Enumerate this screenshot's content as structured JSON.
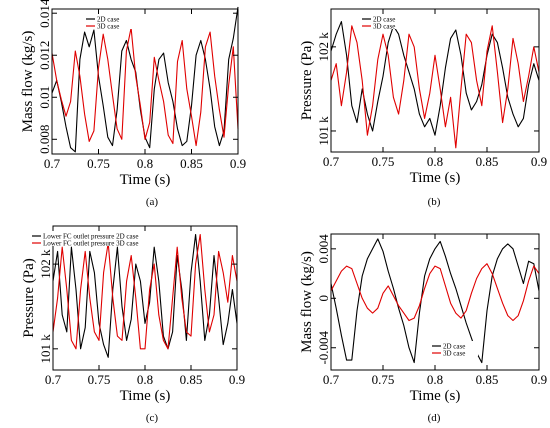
{
  "figure": {
    "panels": [
      "(a)",
      "(b)",
      "(c)",
      "(d)"
    ]
  },
  "colors": {
    "series_2d": "#000000",
    "series_3d": "#e00000"
  },
  "chart_data": [
    {
      "type": "line",
      "panel": "(a)",
      "xlabel": "Time (s)",
      "ylabel": "Mass flow (kg/s)",
      "xlim": [
        0.7,
        0.9
      ],
      "ylim": [
        0.0073,
        0.0142
      ],
      "xticks": [
        0.7,
        0.75,
        0.8,
        0.85,
        0.9
      ],
      "xtick_labels": [
        "0.7",
        "0.75",
        "0.8",
        "0.85",
        "0.9"
      ],
      "yticks": [
        0.008,
        0.01,
        0.012,
        0.014
      ],
      "ytick_labels": [
        "0.008",
        "0.01",
        "0.012",
        "0.014"
      ],
      "legend": "top-center",
      "series": [
        {
          "name": "2D case",
          "color": "#000000",
          "x": [
            0.7,
            0.705,
            0.71,
            0.715,
            0.72,
            0.725,
            0.73,
            0.735,
            0.74,
            0.745,
            0.75,
            0.755,
            0.76,
            0.765,
            0.77,
            0.775,
            0.78,
            0.785,
            0.79,
            0.795,
            0.8,
            0.805,
            0.81,
            0.815,
            0.82,
            0.825,
            0.83,
            0.835,
            0.84,
            0.845,
            0.85,
            0.855,
            0.86,
            0.865,
            0.87,
            0.875,
            0.88,
            0.885,
            0.89,
            0.895,
            0.9
          ],
          "y": [
            0.0102,
            0.0108,
            0.0098,
            0.0086,
            0.0076,
            0.0074,
            0.0118,
            0.0131,
            0.0124,
            0.0132,
            0.011,
            0.0096,
            0.0081,
            0.0077,
            0.0094,
            0.0122,
            0.0127,
            0.0118,
            0.0112,
            0.0094,
            0.0081,
            0.0076,
            0.0104,
            0.0118,
            0.0121,
            0.0107,
            0.0098,
            0.0085,
            0.0077,
            0.0079,
            0.0096,
            0.012,
            0.0127,
            0.0118,
            0.0104,
            0.0086,
            0.0077,
            0.0084,
            0.0118,
            0.0128,
            0.0143
          ]
        },
        {
          "name": "3D case",
          "color": "#e00000",
          "x": [
            0.7,
            0.705,
            0.71,
            0.715,
            0.72,
            0.725,
            0.73,
            0.735,
            0.74,
            0.745,
            0.75,
            0.755,
            0.76,
            0.765,
            0.77,
            0.775,
            0.78,
            0.785,
            0.79,
            0.795,
            0.8,
            0.805,
            0.81,
            0.815,
            0.82,
            0.825,
            0.83,
            0.835,
            0.84,
            0.845,
            0.85,
            0.855,
            0.86,
            0.865,
            0.87,
            0.875,
            0.88,
            0.885,
            0.89,
            0.895,
            0.9
          ],
          "y": [
            0.0121,
            0.0108,
            0.0099,
            0.0091,
            0.0098,
            0.0122,
            0.011,
            0.0092,
            0.0079,
            0.0084,
            0.0114,
            0.013,
            0.0118,
            0.0101,
            0.0085,
            0.008,
            0.0122,
            0.0133,
            0.011,
            0.0096,
            0.008,
            0.0088,
            0.0119,
            0.0108,
            0.0098,
            0.0082,
            0.0078,
            0.0117,
            0.0127,
            0.0104,
            0.0091,
            0.0077,
            0.0093,
            0.0124,
            0.0131,
            0.011,
            0.0094,
            0.0081,
            0.0106,
            0.0124,
            0.0085
          ]
        }
      ]
    },
    {
      "type": "line",
      "panel": "(b)",
      "xlabel": "Time (s)",
      "ylabel": "Pressure (Pa)",
      "xlim": [
        0.7,
        0.9
      ],
      "ylim": [
        100750,
        102450
      ],
      "xticks": [
        0.7,
        0.75,
        0.8,
        0.85,
        0.9
      ],
      "xtick_labels": [
        "0.7",
        "0.75",
        "0.8",
        "0.85",
        "0.9"
      ],
      "yticks": [
        101000,
        102000
      ],
      "ytick_labels": [
        "101 k",
        "102 k"
      ],
      "legend": "top-center",
      "series": [
        {
          "name": "2D case",
          "color": "#000000",
          "x": [
            0.7,
            0.705,
            0.71,
            0.715,
            0.72,
            0.725,
            0.73,
            0.735,
            0.74,
            0.745,
            0.75,
            0.755,
            0.76,
            0.765,
            0.77,
            0.775,
            0.78,
            0.785,
            0.79,
            0.795,
            0.8,
            0.805,
            0.81,
            0.815,
            0.82,
            0.825,
            0.83,
            0.835,
            0.84,
            0.845,
            0.85,
            0.855,
            0.86,
            0.865,
            0.87,
            0.875,
            0.88,
            0.885,
            0.89,
            0.895,
            0.9
          ],
          "y": [
            101950,
            102150,
            102300,
            101900,
            101300,
            101100,
            101500,
            101200,
            101000,
            101350,
            101650,
            102050,
            102250,
            102150,
            101900,
            101700,
            101500,
            101200,
            101050,
            101150,
            100950,
            101300,
            101750,
            102100,
            102200,
            101900,
            101450,
            101250,
            101350,
            101550,
            101900,
            102150,
            102050,
            101750,
            101400,
            101200,
            101050,
            101150,
            101550,
            101800,
            101600
          ]
        },
        {
          "name": "3D case",
          "color": "#e00000",
          "x": [
            0.7,
            0.705,
            0.71,
            0.715,
            0.72,
            0.725,
            0.73,
            0.735,
            0.74,
            0.745,
            0.75,
            0.755,
            0.76,
            0.765,
            0.77,
            0.775,
            0.78,
            0.785,
            0.79,
            0.795,
            0.8,
            0.805,
            0.81,
            0.815,
            0.82,
            0.825,
            0.83,
            0.835,
            0.84,
            0.845,
            0.85,
            0.855,
            0.86,
            0.865,
            0.87,
            0.875,
            0.88,
            0.885,
            0.89,
            0.895,
            0.9
          ],
          "y": [
            101600,
            101800,
            101300,
            101700,
            102250,
            102050,
            101600,
            100950,
            101300,
            101850,
            102150,
            101900,
            101400,
            101200,
            101600,
            102150,
            102000,
            101500,
            101150,
            101450,
            101900,
            101500,
            101050,
            101400,
            100800,
            101500,
            102150,
            102050,
            101600,
            101300,
            101950,
            102250,
            101700,
            101100,
            101500,
            102100,
            101800,
            101350,
            101650,
            102000,
            101700
          ]
        }
      ]
    },
    {
      "type": "line",
      "panel": "(c)",
      "xlabel": "Time (s)",
      "ylabel": "Pressure (Pa)",
      "xlim": [
        0.7,
        0.9
      ],
      "ylim": [
        100750,
        102450
      ],
      "xticks": [
        0.7,
        0.75,
        0.8,
        0.85,
        0.9
      ],
      "xtick_labels": [
        "0.7",
        "0.75",
        "0.8",
        "0.85",
        "0.9"
      ],
      "yticks": [
        101000,
        102000
      ],
      "ytick_labels": [
        "101 k",
        "102 k"
      ],
      "legend": "top-left",
      "series": [
        {
          "name": "Lower FC outlet pressure 2D case",
          "color": "#000000",
          "x": [
            0.7,
            0.705,
            0.71,
            0.715,
            0.72,
            0.725,
            0.73,
            0.735,
            0.74,
            0.745,
            0.75,
            0.755,
            0.76,
            0.765,
            0.77,
            0.775,
            0.78,
            0.785,
            0.79,
            0.795,
            0.8,
            0.805,
            0.81,
            0.815,
            0.82,
            0.825,
            0.83,
            0.835,
            0.84,
            0.845,
            0.85,
            0.855,
            0.86,
            0.865,
            0.87,
            0.875,
            0.88,
            0.885,
            0.89,
            0.895,
            0.9
          ],
          "y": [
            101800,
            102150,
            101400,
            101200,
            102200,
            101700,
            101000,
            101250,
            102150,
            101900,
            101300,
            101050,
            100900,
            101700,
            102200,
            101500,
            101100,
            101350,
            102000,
            101800,
            101300,
            101550,
            102200,
            101800,
            101150,
            101000,
            101200,
            102100,
            101700,
            101100,
            101900,
            102350,
            101800,
            101100,
            101400,
            102100,
            101600,
            101050,
            101300,
            101700,
            101300
          ]
        },
        {
          "name": "Lower FC outlet pressure 3D case",
          "color": "#e00000",
          "x": [
            0.7,
            0.705,
            0.71,
            0.715,
            0.72,
            0.725,
            0.73,
            0.735,
            0.74,
            0.745,
            0.75,
            0.755,
            0.76,
            0.765,
            0.77,
            0.775,
            0.78,
            0.785,
            0.79,
            0.795,
            0.8,
            0.805,
            0.81,
            0.815,
            0.82,
            0.825,
            0.83,
            0.835,
            0.84,
            0.845,
            0.85,
            0.855,
            0.86,
            0.865,
            0.87,
            0.875,
            0.88,
            0.885,
            0.89,
            0.895,
            0.9
          ],
          "y": [
            101200,
            101600,
            102200,
            101700,
            101100,
            101000,
            101700,
            102150,
            101600,
            101200,
            101100,
            101900,
            102250,
            101600,
            101150,
            101100,
            101800,
            102100,
            101600,
            101000,
            101000,
            101700,
            102000,
            101400,
            101100,
            101000,
            101600,
            102200,
            101600,
            101200,
            101150,
            102000,
            102350,
            101700,
            101200,
            101400,
            102150,
            101900,
            101550,
            102100,
            101800
          ]
        }
      ]
    },
    {
      "type": "line",
      "panel": "(d)",
      "xlabel": "Time (s)",
      "ylabel": "Mass flow (kg/s)",
      "xlim": [
        0.7,
        0.9
      ],
      "ylim": [
        -0.0058,
        0.0052
      ],
      "xticks": [
        0.7,
        0.75,
        0.8,
        0.85,
        0.9
      ],
      "xtick_labels": [
        "0.7",
        "0.75",
        "0.8",
        "0.85",
        "0.9"
      ],
      "yticks": [
        -0.004,
        0,
        0.004
      ],
      "ytick_labels": [
        "-0.004",
        "0",
        "0.004"
      ],
      "legend": "bottom-right",
      "series": [
        {
          "name": "2D case",
          "color": "#000000",
          "x": [
            0.7,
            0.705,
            0.71,
            0.715,
            0.72,
            0.725,
            0.73,
            0.735,
            0.74,
            0.745,
            0.75,
            0.755,
            0.76,
            0.765,
            0.77,
            0.775,
            0.78,
            0.785,
            0.79,
            0.795,
            0.8,
            0.805,
            0.81,
            0.815,
            0.82,
            0.825,
            0.83,
            0.835,
            0.84,
            0.845,
            0.85,
            0.855,
            0.86,
            0.865,
            0.87,
            0.875,
            0.88,
            0.885,
            0.89,
            0.895,
            0.9
          ],
          "y": [
            0.0012,
            -0.0008,
            -0.003,
            -0.005,
            -0.005,
            -0.001,
            0.0018,
            0.0032,
            0.004,
            0.0048,
            0.0038,
            0.0022,
            0.0008,
            -0.0008,
            -0.0022,
            -0.004,
            -0.0052,
            -0.0012,
            0.0018,
            0.0032,
            0.004,
            0.0046,
            0.0034,
            0.002,
            0.0008,
            -0.0006,
            -0.002,
            -0.0032,
            -0.0044,
            -0.0052,
            -0.001,
            0.0018,
            0.0032,
            0.004,
            0.0044,
            0.004,
            0.0026,
            0.0012,
            0.003,
            0.0028,
            0.0006
          ]
        },
        {
          "name": "3D case",
          "color": "#e00000",
          "x": [
            0.7,
            0.705,
            0.71,
            0.715,
            0.72,
            0.725,
            0.73,
            0.735,
            0.74,
            0.745,
            0.75,
            0.755,
            0.76,
            0.765,
            0.77,
            0.775,
            0.78,
            0.785,
            0.79,
            0.795,
            0.8,
            0.805,
            0.81,
            0.815,
            0.82,
            0.825,
            0.83,
            0.835,
            0.84,
            0.845,
            0.85,
            0.855,
            0.86,
            0.865,
            0.87,
            0.875,
            0.88,
            0.885,
            0.89,
            0.895,
            0.9
          ],
          "y": [
            0.0006,
            0.0014,
            0.0022,
            0.0026,
            0.0024,
            0.0012,
            0.0,
            -0.0008,
            -0.0012,
            -0.0008,
            0.0004,
            0.001,
            0.0002,
            -0.0006,
            -0.0012,
            -0.0018,
            -0.0016,
            -0.0006,
            0.0008,
            0.002,
            0.0026,
            0.0024,
            0.001,
            -0.0004,
            -0.0012,
            -0.0016,
            -0.001,
            0.0004,
            0.0016,
            0.0024,
            0.0028,
            0.002,
            0.0008,
            -0.0004,
            -0.0014,
            -0.0018,
            -0.0014,
            -0.0002,
            0.0014,
            0.0026,
            0.002
          ]
        }
      ]
    }
  ]
}
